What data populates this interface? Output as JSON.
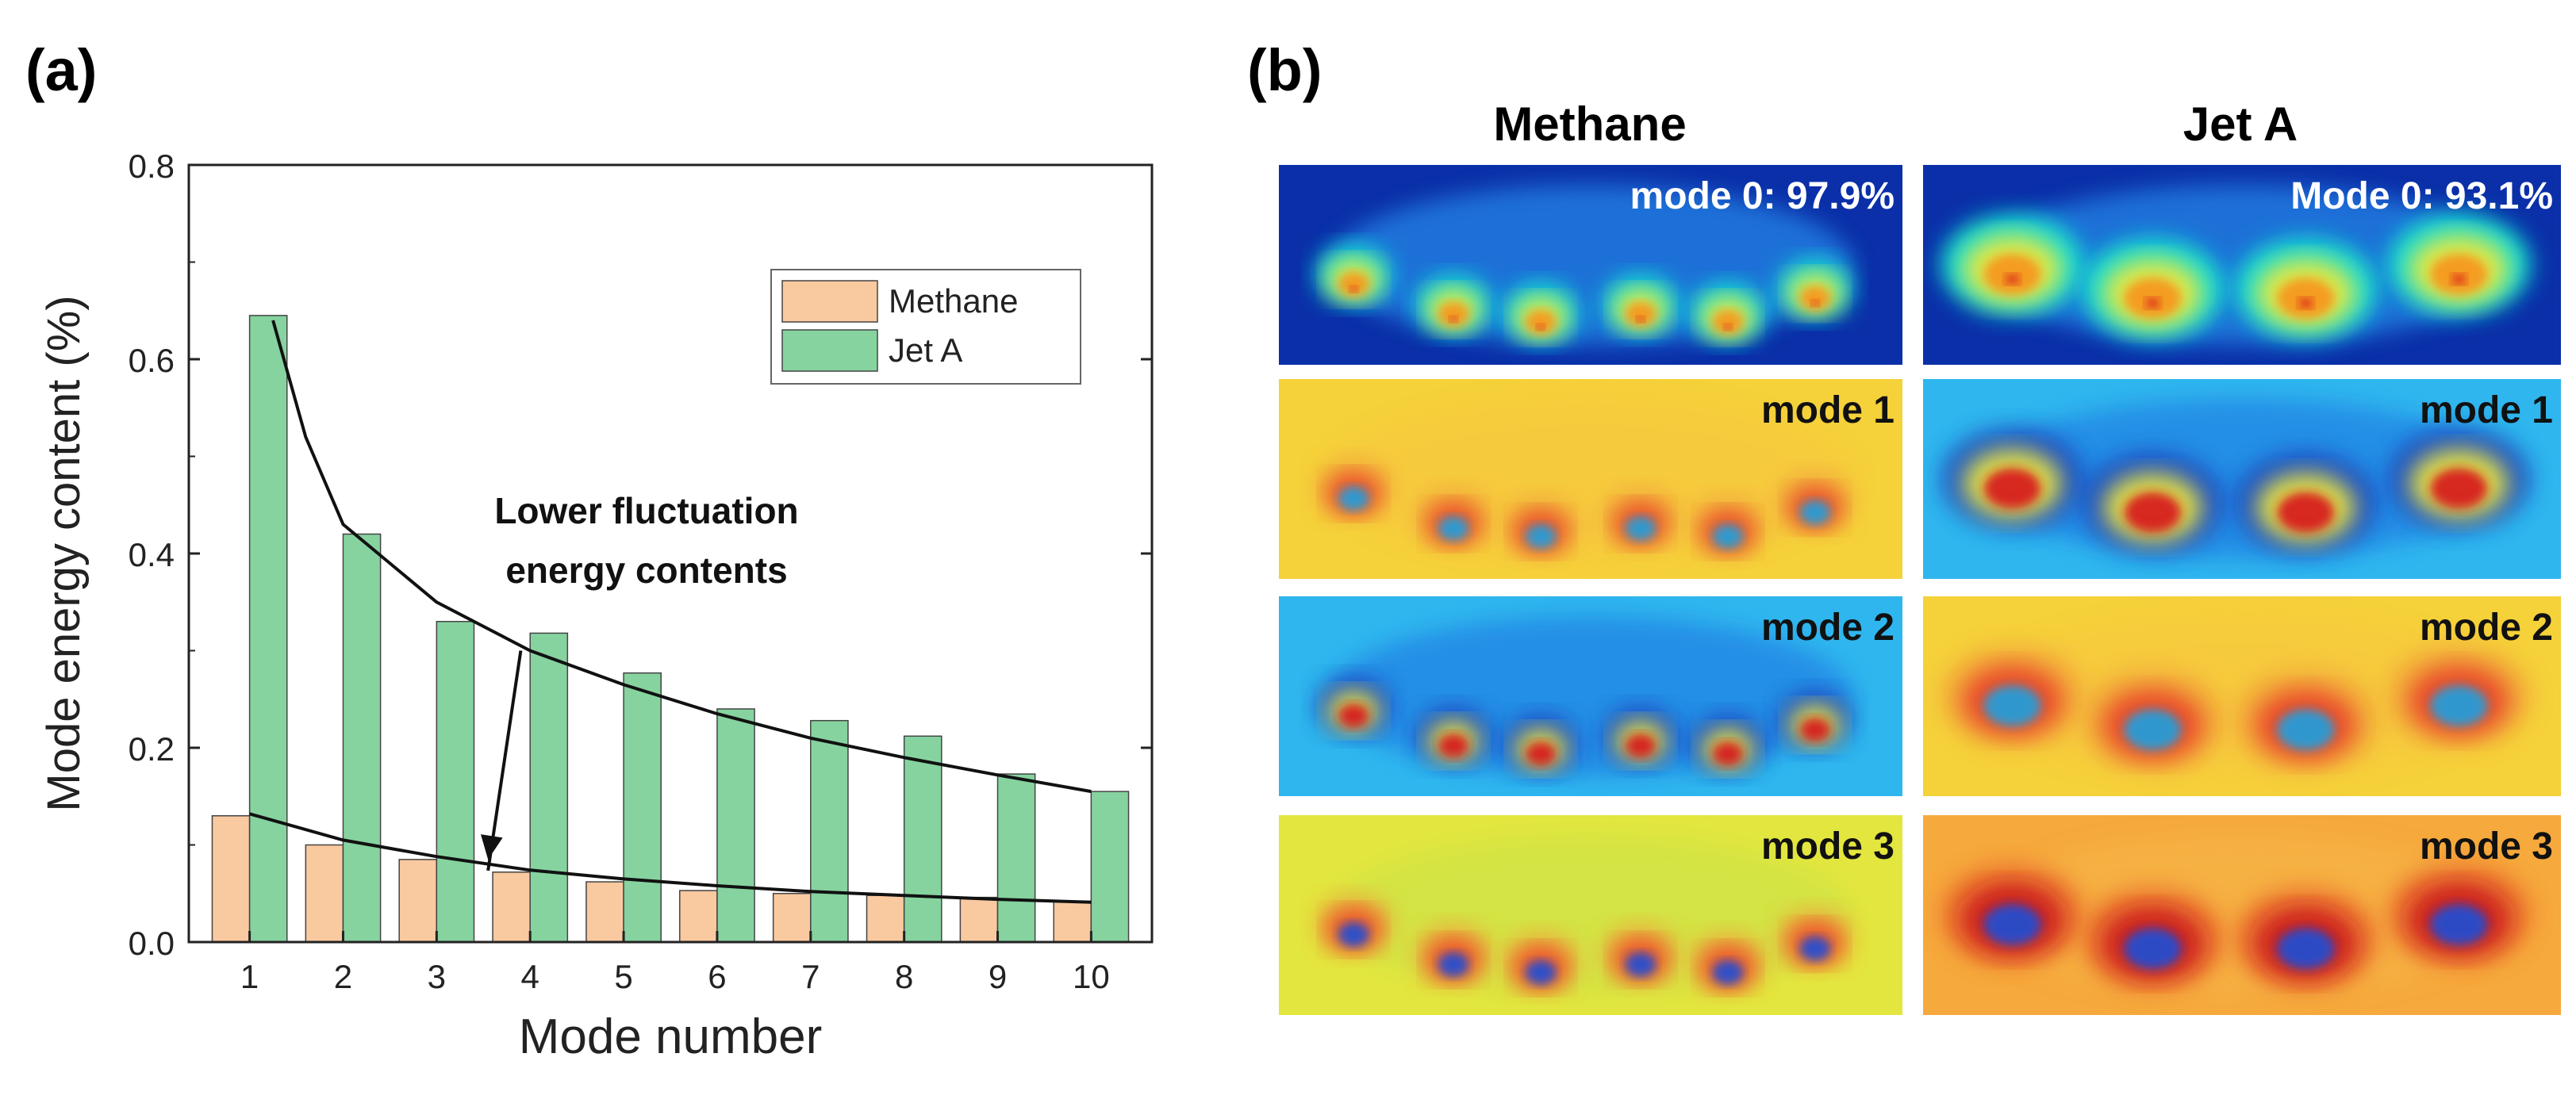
{
  "panel_a": {
    "label": "(a)"
  },
  "panel_b": {
    "label": "(b)",
    "columns": [
      "Methane",
      "Jet A"
    ],
    "fields": [
      {
        "mode": "mode 0: 97.9%",
        "color": "#ffffff",
        "palette": "mode0"
      },
      {
        "mode": "Mode 0: 93.1%",
        "color": "#ffffff",
        "palette": "mode0"
      },
      {
        "mode": "mode 1",
        "color": "#111111",
        "palette": "yellow"
      },
      {
        "mode": "mode 1",
        "color": "#111111",
        "palette": "cyan"
      },
      {
        "mode": "mode 2",
        "color": "#111111",
        "palette": "cyan"
      },
      {
        "mode": "mode 2",
        "color": "#111111",
        "palette": "yellow"
      },
      {
        "mode": "mode 3",
        "color": "#111111",
        "palette": "green-yellow"
      },
      {
        "mode": "mode 3",
        "color": "#111111",
        "palette": "orange"
      }
    ]
  },
  "chart_data": {
    "type": "bar",
    "title": "",
    "xlabel": "Mode number",
    "ylabel": "Mode energy content (%)",
    "ylim": [
      0,
      0.8
    ],
    "yticks": [
      "0.0",
      "0.2",
      "0.4",
      "0.6",
      "0.8"
    ],
    "categories": [
      "1",
      "2",
      "3",
      "4",
      "5",
      "6",
      "7",
      "8",
      "9",
      "10"
    ],
    "series": [
      {
        "name": "Methane",
        "color": "#f9c9a0",
        "values": [
          0.13,
          0.1,
          0.085,
          0.072,
          0.062,
          0.053,
          0.05,
          0.048,
          0.046,
          0.042
        ]
      },
      {
        "name": "Jet A",
        "color": "#86d3a0",
        "values": [
          0.645,
          0.42,
          0.33,
          0.318,
          0.277,
          0.24,
          0.228,
          0.212,
          0.173,
          0.155
        ]
      }
    ],
    "fit_curves": [
      {
        "series": "Jet A",
        "points": [
          [
            1.25,
            0.64
          ],
          [
            1.6,
            0.52
          ],
          [
            2,
            0.43
          ],
          [
            3,
            0.35
          ],
          [
            4,
            0.3
          ],
          [
            5,
            0.265
          ],
          [
            6,
            0.235
          ],
          [
            7,
            0.21
          ],
          [
            8,
            0.19
          ],
          [
            9,
            0.172
          ],
          [
            10,
            0.155
          ]
        ]
      },
      {
        "series": "Methane",
        "points": [
          [
            1,
            0.132
          ],
          [
            2,
            0.105
          ],
          [
            3,
            0.088
          ],
          [
            4,
            0.074
          ],
          [
            5,
            0.065
          ],
          [
            6,
            0.058
          ],
          [
            7,
            0.052
          ],
          [
            8,
            0.048
          ],
          [
            9,
            0.044
          ],
          [
            10,
            0.041
          ]
        ]
      }
    ],
    "annotation": {
      "lines": [
        "Lower fluctuation",
        "energy contents"
      ],
      "arrow_from": [
        3.9,
        0.3
      ],
      "arrow_to": [
        3.55,
        0.085
      ]
    },
    "legend": "top-right"
  }
}
